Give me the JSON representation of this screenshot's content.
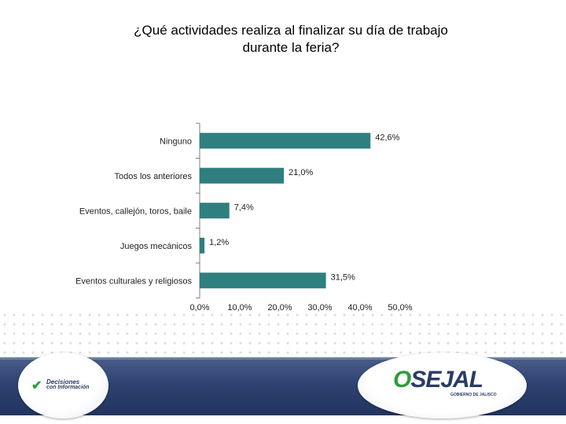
{
  "title_lines": [
    "¿Qué actividades realiza al finalizar su día de trabajo",
    "durante la feria?"
  ],
  "chart_data": {
    "type": "bar",
    "orientation": "horizontal",
    "title": "¿Qué actividades realiza al finalizar su día de trabajo durante la feria?",
    "categories": [
      "Ninguno",
      "Todos los anteriores",
      "Eventos, callejón, toros, baile",
      "Juegos mecánicos",
      "Eventos culturales y religiosos"
    ],
    "values": [
      42.6,
      21.0,
      7.4,
      1.2,
      31.5
    ],
    "data_labels": [
      "42,6%",
      "21,0%",
      "7,4%",
      "1,2%",
      "31,5%"
    ],
    "xlim": [
      0,
      50
    ],
    "ticks": [
      0,
      10,
      20,
      30,
      40,
      50
    ],
    "tick_labels": [
      "0,0%",
      "10,0%",
      "20,0%",
      "30,0%",
      "40,0%",
      "50,0%"
    ],
    "xlabel": "",
    "ylabel": "",
    "bar_color": "#2f7f7f"
  },
  "footer": {
    "left_logo": {
      "line1": "Decisiones",
      "line2": "con Información"
    },
    "right_logo": {
      "brand_o": "O",
      "brand_rest": "SEJAL",
      "tagline": "GOBIERNO DE JALISCO"
    }
  }
}
